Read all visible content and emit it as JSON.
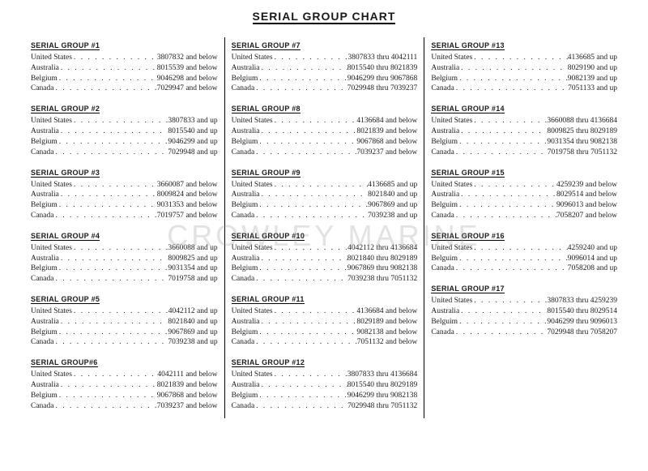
{
  "title": "SERIAL GROUP CHART",
  "watermark": "CROWLEY MARINE",
  "columns": [
    [
      {
        "name": "SERIAL GROUP #1",
        "rows": [
          {
            "country": "United States",
            "serial": "3807832 and below"
          },
          {
            "country": "Australia",
            "serial": "8015539 and below"
          },
          {
            "country": "Belgium",
            "serial": "9046298 and below"
          },
          {
            "country": "Canada",
            "serial": "7029947 and below"
          }
        ]
      },
      {
        "name": "SERIAL GROUP #2",
        "rows": [
          {
            "country": "United States",
            "serial": "3807833 and up"
          },
          {
            "country": "Australia",
            "serial": "8015540 and up"
          },
          {
            "country": "Belgium",
            "serial": "9046299 and up"
          },
          {
            "country": "Canada",
            "serial": "7029948 and up"
          }
        ]
      },
      {
        "name": "SERIAL GROUP #3",
        "rows": [
          {
            "country": "United States",
            "serial": "3660087 and below"
          },
          {
            "country": "Australia",
            "serial": "8009824 and below"
          },
          {
            "country": "Belgium",
            "serial": "9031353 and below"
          },
          {
            "country": "Canada",
            "serial": "7019757 and below"
          }
        ]
      },
      {
        "name": "SERIAL GROUP #4",
        "rows": [
          {
            "country": "United States",
            "serial": "3660088 and up"
          },
          {
            "country": "Australia",
            "serial": "8009825 and up"
          },
          {
            "country": "Belgium",
            "serial": "9031354 and up"
          },
          {
            "country": "Canada",
            "serial": "7019758 and up"
          }
        ]
      },
      {
        "name": "SERIAL GROUP #5",
        "rows": [
          {
            "country": "United States",
            "serial": "4042112 and up"
          },
          {
            "country": "Australia",
            "serial": "8021840 and up"
          },
          {
            "country": "Belgium",
            "serial": "9067869 and up"
          },
          {
            "country": "Canada",
            "serial": "7039238 and up"
          }
        ]
      },
      {
        "name": "SERIAL GROUP#6",
        "rows": [
          {
            "country": "United States",
            "serial": "4042111 and below"
          },
          {
            "country": "Australia",
            "serial": "8021839 and below"
          },
          {
            "country": "Belgium",
            "serial": "9067868 and below"
          },
          {
            "country": "Canada",
            "serial": "7039237 and below"
          }
        ]
      }
    ],
    [
      {
        "name": "SERIAL GROUP #7",
        "rows": [
          {
            "country": "United States",
            "serial": "3807833 thru 4042111"
          },
          {
            "country": "Australia",
            "serial": "8015540 thru 8021839"
          },
          {
            "country": "Belgium",
            "serial": "9046299 thru 9067868"
          },
          {
            "country": "Canada",
            "serial": "7029948 thru 7039237"
          }
        ]
      },
      {
        "name": "SERIAL GROUP #8",
        "rows": [
          {
            "country": "United States",
            "serial": "4136684 and below"
          },
          {
            "country": "Australia",
            "serial": "8021839 and below"
          },
          {
            "country": "Belgium",
            "serial": "9067868 and below"
          },
          {
            "country": "Canada",
            "serial": "7039237 and below"
          }
        ]
      },
      {
        "name": "SERIAL GROUP #9",
        "rows": [
          {
            "country": "United States",
            "serial": "4136685 and up"
          },
          {
            "country": "Australia",
            "serial": "8021840 and up"
          },
          {
            "country": "Belgium",
            "serial": "9067869 and up"
          },
          {
            "country": "Canada",
            "serial": "7039238 and up"
          }
        ]
      },
      {
        "name": "SERIAL GROUP #10",
        "rows": [
          {
            "country": "United States",
            "serial": "4042112 thru 4136684"
          },
          {
            "country": "Australia",
            "serial": "8021840 thru 8029189"
          },
          {
            "country": "Belgium",
            "serial": "9067869 thru 9082138"
          },
          {
            "country": "Canada",
            "serial": "7039238 thru 7051132"
          }
        ]
      },
      {
        "name": "SERIAL GROUP #11",
        "rows": [
          {
            "country": "United States",
            "serial": "4136684 and below"
          },
          {
            "country": "Australia",
            "serial": "8029189 and below"
          },
          {
            "country": "Belgium",
            "serial": "9082138 and below"
          },
          {
            "country": "Canada",
            "serial": "7051132 and below"
          }
        ]
      },
      {
        "name": "SERIAL GROUP #12",
        "rows": [
          {
            "country": "United States",
            "serial": "3807833 thru 4136684"
          },
          {
            "country": "Australia",
            "serial": "8015540 thru 8029189"
          },
          {
            "country": "Belgium",
            "serial": "9046299 thru 9082138"
          },
          {
            "country": "Canada",
            "serial": "7029948 thru 7051132"
          }
        ]
      }
    ],
    [
      {
        "name": "SERIAL GROUP #13",
        "rows": [
          {
            "country": "United States",
            "serial": "4136685 and up"
          },
          {
            "country": "Australia",
            "serial": "8029190 and up"
          },
          {
            "country": "Belgium",
            "serial": "9082139 and up"
          },
          {
            "country": "Canada",
            "serial": "7051133 and up"
          }
        ]
      },
      {
        "name": "SERIAL GROUP #14",
        "rows": [
          {
            "country": "United States",
            "serial": "3660088 thru 4136684"
          },
          {
            "country": "Australia",
            "serial": "8009825 thru 8029189"
          },
          {
            "country": "Belgium",
            "serial": "9031354 thru 9082138"
          },
          {
            "country": "Canada",
            "serial": "7019758 thru 7051132"
          }
        ]
      },
      {
        "name": "SERIAL GROUP #15",
        "rows": [
          {
            "country": "United States",
            "serial": "4259239 and below"
          },
          {
            "country": "Australia",
            "serial": "8029514 and below"
          },
          {
            "country": "Belguim",
            "serial": "9096013 and below"
          },
          {
            "country": "Canada",
            "serial": "7058207 and below"
          }
        ]
      },
      {
        "name": "SERIAL GROUP #16",
        "rows": [
          {
            "country": "United States",
            "serial": "4259240 and up"
          },
          {
            "country": "Belguim",
            "serial": "9096014 and up"
          },
          {
            "country": "Canada",
            "serial": "7058208 and up"
          }
        ]
      },
      {
        "name": "SERIAL GROUP #17",
        "rows": [
          {
            "country": "United States",
            "serial": "3807833 thru 4259239"
          },
          {
            "country": "Australia",
            "serial": "8015540 thru 8029514"
          },
          {
            "country": "Belguim",
            "serial": "9046299 thru 9096013"
          },
          {
            "country": "Canada",
            "serial": "7029948 thru 7058207"
          }
        ]
      }
    ]
  ]
}
